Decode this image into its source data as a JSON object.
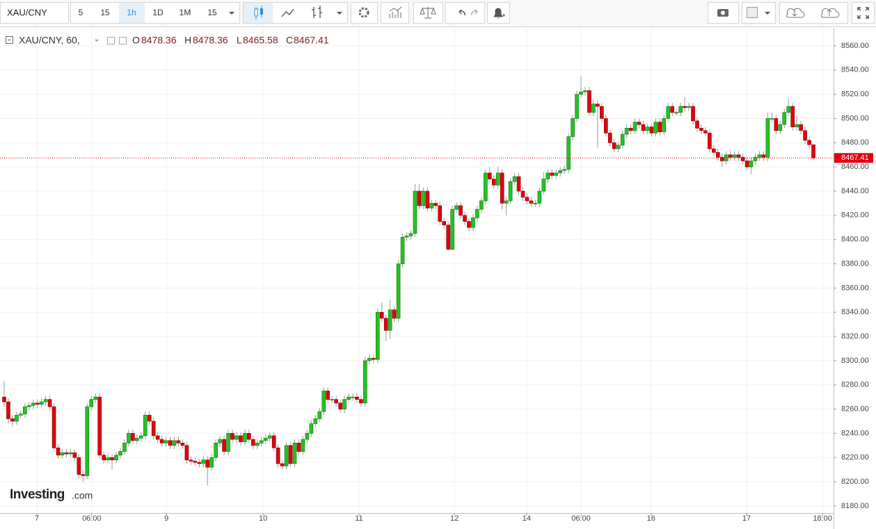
{
  "toolbar": {
    "symbol": "XAU/CNY",
    "intervals": [
      "5",
      "15",
      "1h",
      "1D",
      "1M",
      "15"
    ]
  },
  "legend": {
    "symbol": "XAU/CNY, 60,",
    "ohlc_labels": [
      "O",
      "H",
      "L",
      "C"
    ]
  },
  "watermark": {
    "brand": "Investing",
    "suffix": ".com"
  },
  "chart_data": {
    "type": "candlestick",
    "up_color": "#22c422",
    "down_color": "#e2000e",
    "grid": true,
    "ylim": [
      8174.2,
      8574.9
    ],
    "yticks": [
      {
        "value": 8180,
        "label": "8180.00"
      },
      {
        "value": 8200,
        "label": "8200.00"
      },
      {
        "value": 8220,
        "label": "8220.00"
      },
      {
        "value": 8240,
        "label": "8240.00"
      },
      {
        "value": 8260,
        "label": "8260.00"
      },
      {
        "value": 8280,
        "label": "8280.00"
      },
      {
        "value": 8300,
        "label": "8300.00"
      },
      {
        "value": 8320,
        "label": "8320.00"
      },
      {
        "value": 8340,
        "label": "8340.00"
      },
      {
        "value": 8360,
        "label": "8360.00"
      },
      {
        "value": 8380,
        "label": "8380.00"
      },
      {
        "value": 8400,
        "label": "8400.00"
      },
      {
        "value": 8420,
        "label": "8420.00"
      },
      {
        "value": 8440,
        "label": "8440.00"
      },
      {
        "value": 8460,
        "label": "8460.00"
      },
      {
        "value": 8480,
        "label": "8480.00"
      },
      {
        "value": 8500,
        "label": "8500.00"
      },
      {
        "value": 8520,
        "label": "8520.00"
      },
      {
        "value": 8540,
        "label": "8540.00"
      },
      {
        "value": 8560,
        "label": "8560.00"
      }
    ],
    "xticks": [
      {
        "value": 7.9,
        "label": "7"
      },
      {
        "value": 21.1,
        "label": "06:00"
      },
      {
        "value": 39.1,
        "label": "9"
      },
      {
        "value": 62.4,
        "label": "10"
      },
      {
        "value": 85.5,
        "label": "11"
      },
      {
        "value": 108.5,
        "label": "12"
      },
      {
        "value": 125.9,
        "label": "14"
      },
      {
        "value": 139.0,
        "label": "06:00"
      },
      {
        "value": 155.9,
        "label": "16"
      },
      {
        "value": 178.9,
        "label": "17"
      },
      {
        "value": 197.2,
        "label": "18:00"
      }
    ],
    "last_price": 8467.41,
    "ohlc": [
      [
        8270,
        8283,
        8262,
        8266
      ],
      [
        8266,
        8269,
        8248,
        8252
      ],
      [
        8252,
        8255,
        8246,
        8250
      ],
      [
        8250,
        8258,
        8247,
        8255
      ],
      [
        8255,
        8259,
        8252,
        8256
      ],
      [
        8256,
        8265,
        8253,
        8262
      ],
      [
        8262,
        8266,
        8259,
        8263
      ],
      [
        8263,
        8268,
        8260,
        8265
      ],
      [
        8265,
        8268,
        8261,
        8264
      ],
      [
        8264,
        8269,
        8261,
        8266
      ],
      [
        8266,
        8271,
        8263,
        8268
      ],
      [
        8268,
        8271,
        8259,
        8262
      ],
      [
        8262,
        8265,
        8225,
        8228
      ],
      [
        8228,
        8231,
        8219,
        8222
      ],
      [
        8222,
        8227,
        8219,
        8224
      ],
      [
        8224,
        8227,
        8220,
        8223
      ],
      [
        8223,
        8227,
        8220,
        8224
      ],
      [
        8224,
        8227,
        8217,
        8220
      ],
      [
        8220,
        8223,
        8203,
        8206
      ],
      [
        8206,
        8209,
        8200,
        8205
      ],
      [
        8205,
        8265,
        8202,
        8262
      ],
      [
        8262,
        8271,
        8259,
        8268
      ],
      [
        8268,
        8273,
        8265,
        8270
      ],
      [
        8270,
        8273,
        8219,
        8222
      ],
      [
        8222,
        8225,
        8215,
        8218
      ],
      [
        8218,
        8223,
        8215,
        8220
      ],
      [
        8220,
        8223,
        8210,
        8218
      ],
      [
        8218,
        8225,
        8215,
        8222
      ],
      [
        8222,
        8228,
        8219,
        8225
      ],
      [
        8225,
        8235,
        8222,
        8232
      ],
      [
        8232,
        8243,
        8229,
        8240
      ],
      [
        8240,
        8243,
        8231,
        8234
      ],
      [
        8234,
        8239,
        8231,
        8236
      ],
      [
        8236,
        8241,
        8233,
        8238
      ],
      [
        8238,
        8258,
        8235,
        8255
      ],
      [
        8255,
        8258,
        8247,
        8250
      ],
      [
        8250,
        8253,
        8235,
        8238
      ],
      [
        8238,
        8241,
        8232,
        8235
      ],
      [
        8235,
        8238,
        8229,
        8232
      ],
      [
        8232,
        8237,
        8229,
        8234
      ],
      [
        8234,
        8237,
        8227,
        8230
      ],
      [
        8230,
        8237,
        8227,
        8234
      ],
      [
        8234,
        8237,
        8229,
        8232
      ],
      [
        8232,
        8235,
        8227,
        8230
      ],
      [
        8230,
        8233,
        8215,
        8218
      ],
      [
        8218,
        8221,
        8214,
        8217
      ],
      [
        8217,
        8220,
        8213,
        8216
      ],
      [
        8216,
        8219,
        8212,
        8215
      ],
      [
        8215,
        8221,
        8212,
        8218
      ],
      [
        8218,
        8221,
        8197,
        8212
      ],
      [
        8212,
        8223,
        8209,
        8220
      ],
      [
        8220,
        8235,
        8217,
        8232
      ],
      [
        8232,
        8238,
        8229,
        8235
      ],
      [
        8235,
        8238,
        8222,
        8225
      ],
      [
        8225,
        8243,
        8222,
        8240
      ],
      [
        8240,
        8243,
        8232,
        8235
      ],
      [
        8235,
        8241,
        8232,
        8238
      ],
      [
        8238,
        8241,
        8230,
        8233
      ],
      [
        8233,
        8243,
        8230,
        8240
      ],
      [
        8240,
        8243,
        8232,
        8235
      ],
      [
        8235,
        8238,
        8227,
        8230
      ],
      [
        8230,
        8235,
        8227,
        8232
      ],
      [
        8232,
        8237,
        8229,
        8234
      ],
      [
        8234,
        8239,
        8231,
        8236
      ],
      [
        8236,
        8241,
        8233,
        8238
      ],
      [
        8238,
        8241,
        8225,
        8228
      ],
      [
        8228,
        8231,
        8212,
        8215
      ],
      [
        8215,
        8218,
        8210,
        8213
      ],
      [
        8213,
        8233,
        8210,
        8230
      ],
      [
        8230,
        8233,
        8212,
        8215
      ],
      [
        8215,
        8235,
        8212,
        8232
      ],
      [
        8232,
        8235,
        8222,
        8225
      ],
      [
        8225,
        8238,
        8222,
        8235
      ],
      [
        8235,
        8243,
        8232,
        8240
      ],
      [
        8240,
        8251,
        8237,
        8248
      ],
      [
        8248,
        8255,
        8245,
        8252
      ],
      [
        8252,
        8261,
        8249,
        8258
      ],
      [
        8258,
        8278,
        8255,
        8275
      ],
      [
        8275,
        8278,
        8265,
        8268
      ],
      [
        8268,
        8271,
        8265,
        8268
      ],
      [
        8268,
        8271,
        8262,
        8265
      ],
      [
        8265,
        8268,
        8257,
        8260
      ],
      [
        8260,
        8271,
        8257,
        8268
      ],
      [
        8268,
        8273,
        8265,
        8270
      ],
      [
        8270,
        8273,
        8267,
        8270
      ],
      [
        8270,
        8273,
        8265,
        8268
      ],
      [
        8268,
        8271,
        8262,
        8265
      ],
      [
        8265,
        8303,
        8262,
        8300
      ],
      [
        8300,
        8305,
        8297,
        8302
      ],
      [
        8302,
        8305,
        8298,
        8301
      ],
      [
        8301,
        8343,
        8298,
        8340
      ],
      [
        8340,
        8348,
        8332,
        8335
      ],
      [
        8335,
        8338,
        8316,
        8325
      ],
      [
        8325,
        8350,
        8318,
        8342
      ],
      [
        8342,
        8345,
        8332,
        8335
      ],
      [
        8335,
        8383,
        8332,
        8380
      ],
      [
        8380,
        8405,
        8377,
        8402
      ],
      [
        8402,
        8406,
        8399,
        8403
      ],
      [
        8403,
        8408,
        8400,
        8405
      ],
      [
        8405,
        8446,
        8402,
        8440
      ],
      [
        8440,
        8446,
        8425,
        8428
      ],
      [
        8428,
        8443,
        8425,
        8440
      ],
      [
        8440,
        8443,
        8423,
        8426
      ],
      [
        8426,
        8433,
        8423,
        8430
      ],
      [
        8430,
        8433,
        8425,
        8428
      ],
      [
        8428,
        8431,
        8412,
        8415
      ],
      [
        8415,
        8418,
        8409,
        8412
      ],
      [
        8412,
        8415,
        8391,
        8392
      ],
      [
        8392,
        8428,
        8391,
        8425
      ],
      [
        8425,
        8431,
        8422,
        8428
      ],
      [
        8428,
        8431,
        8417,
        8420
      ],
      [
        8420,
        8423,
        8412,
        8415
      ],
      [
        8415,
        8418,
        8407,
        8410
      ],
      [
        8410,
        8421,
        8407,
        8418
      ],
      [
        8418,
        8428,
        8415,
        8425
      ],
      [
        8425,
        8435,
        8422,
        8432
      ],
      [
        8432,
        8458,
        8429,
        8455
      ],
      [
        8455,
        8460,
        8447,
        8450
      ],
      [
        8450,
        8453,
        8442,
        8445
      ],
      [
        8445,
        8460,
        8442,
        8455
      ],
      [
        8455,
        8458,
        8425,
        8430
      ],
      [
        8430,
        8435,
        8420,
        8432
      ],
      [
        8432,
        8451,
        8429,
        8448
      ],
      [
        8448,
        8455,
        8445,
        8452
      ],
      [
        8452,
        8455,
        8437,
        8440
      ],
      [
        8440,
        8443,
        8432,
        8435
      ],
      [
        8435,
        8438,
        8429,
        8432
      ],
      [
        8432,
        8435,
        8427,
        8430
      ],
      [
        8430,
        8433,
        8427,
        8430
      ],
      [
        8430,
        8443,
        8427,
        8440
      ],
      [
        8440,
        8456,
        8437,
        8450
      ],
      [
        8450,
        8458,
        8447,
        8455
      ],
      [
        8455,
        8458,
        8450,
        8453
      ],
      [
        8453,
        8458,
        8450,
        8455
      ],
      [
        8455,
        8460,
        8452,
        8457
      ],
      [
        8457,
        8461,
        8454,
        8458
      ],
      [
        8458,
        8488,
        8455,
        8485
      ],
      [
        8485,
        8503,
        8482,
        8500
      ],
      [
        8500,
        8523,
        8497,
        8520
      ],
      [
        8520,
        8535,
        8517,
        8522
      ],
      [
        8522,
        8526,
        8519,
        8523
      ],
      [
        8523,
        8526,
        8502,
        8505
      ],
      [
        8505,
        8515,
        8502,
        8512
      ],
      [
        8512,
        8515,
        8476,
        8510
      ],
      [
        8510,
        8513,
        8497,
        8500
      ],
      [
        8500,
        8503,
        8485,
        8488
      ],
      [
        8488,
        8491,
        8477,
        8480
      ],
      [
        8480,
        8483,
        8472,
        8475
      ],
      [
        8475,
        8481,
        8472,
        8478
      ],
      [
        8478,
        8490,
        8475,
        8487
      ],
      [
        8487,
        8495,
        8484,
        8492
      ],
      [
        8492,
        8495,
        8487,
        8490
      ],
      [
        8490,
        8500,
        8487,
        8497
      ],
      [
        8497,
        8500,
        8492,
        8495
      ],
      [
        8495,
        8498,
        8487,
        8490
      ],
      [
        8490,
        8496,
        8487,
        8493
      ],
      [
        8493,
        8496,
        8485,
        8488
      ],
      [
        8488,
        8500,
        8485,
        8497
      ],
      [
        8497,
        8500,
        8486,
        8489
      ],
      [
        8489,
        8503,
        8486,
        8500
      ],
      [
        8500,
        8513,
        8497,
        8510
      ],
      [
        8510,
        8513,
        8502,
        8505
      ],
      [
        8505,
        8508,
        8502,
        8505
      ],
      [
        8505,
        8513,
        8502,
        8510
      ],
      [
        8510,
        8518,
        8506,
        8509
      ],
      [
        8509,
        8513,
        8506,
        8510
      ],
      [
        8510,
        8513,
        8495,
        8498
      ],
      [
        8498,
        8501,
        8489,
        8492
      ],
      [
        8492,
        8495,
        8487,
        8490
      ],
      [
        8490,
        8493,
        8485,
        8488
      ],
      [
        8488,
        8491,
        8472,
        8475
      ],
      [
        8475,
        8478,
        8469,
        8472
      ],
      [
        8472,
        8475,
        8465,
        8468
      ],
      [
        8468,
        8471,
        8460,
        8465
      ],
      [
        8465,
        8473,
        8462,
        8470
      ],
      [
        8470,
        8473,
        8465,
        8468
      ],
      [
        8468,
        8473,
        8465,
        8470
      ],
      [
        8470,
        8473,
        8465,
        8468
      ],
      [
        8468,
        8471,
        8462,
        8465
      ],
      [
        8465,
        8468,
        8457,
        8460
      ],
      [
        8460,
        8468,
        8454,
        8465
      ],
      [
        8465,
        8471,
        8462,
        8468
      ],
      [
        8468,
        8473,
        8465,
        8470
      ],
      [
        8470,
        8473,
        8465,
        8468
      ],
      [
        8468,
        8505,
        8465,
        8500
      ],
      [
        8500,
        8505,
        8497,
        8500
      ],
      [
        8500,
        8503,
        8487,
        8490
      ],
      [
        8490,
        8498,
        8487,
        8495
      ],
      [
        8495,
        8508,
        8492,
        8505
      ],
      [
        8505,
        8516,
        8502,
        8510
      ],
      [
        8510,
        8513,
        8490,
        8493
      ],
      [
        8493,
        8502,
        8490,
        8495
      ],
      [
        8495,
        8498,
        8487,
        8490
      ],
      [
        8490,
        8493,
        8479,
        8482
      ],
      [
        8482,
        8485,
        8475,
        8478.36
      ],
      [
        8478.36,
        8478.36,
        8465.58,
        8467.41
      ]
    ]
  }
}
